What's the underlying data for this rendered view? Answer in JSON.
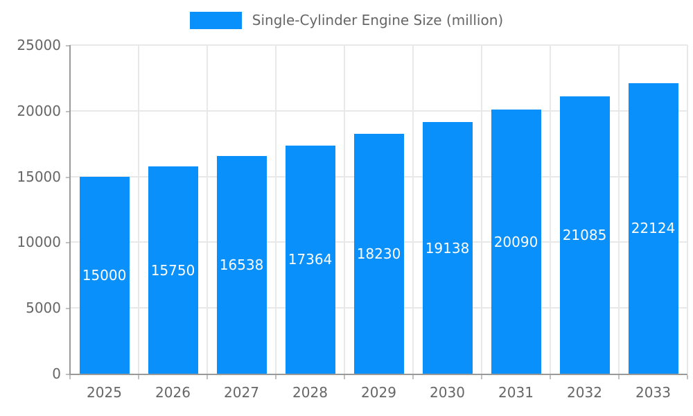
{
  "chart_data": {
    "type": "bar",
    "legend": "Single-Cylinder Engine Size (million)",
    "categories": [
      "2025",
      "2026",
      "2027",
      "2028",
      "2029",
      "2030",
      "2031",
      "2032",
      "2033"
    ],
    "values": [
      15000,
      15750,
      16538,
      17364,
      18230,
      19138,
      20090,
      21085,
      22124
    ],
    "y_ticks": [
      0,
      5000,
      10000,
      15000,
      20000,
      25000
    ],
    "y_tick_labels": [
      "0",
      "5000",
      "10000",
      "15000",
      "20000",
      "25000"
    ],
    "ylim": [
      0,
      25000
    ],
    "title": "",
    "xlabel": "",
    "ylabel": "",
    "legend_position": "top",
    "grid": true,
    "data_labels_inside_bars": true,
    "bar_color": "#0a90fa",
    "bar_label_color": "#ffffff",
    "axis_text_color": "#666666",
    "axis_line_color": "#999999",
    "grid_color": "#e8e8e8",
    "tick_color": "#c0c0c0",
    "background_color": "#ffffff"
  }
}
